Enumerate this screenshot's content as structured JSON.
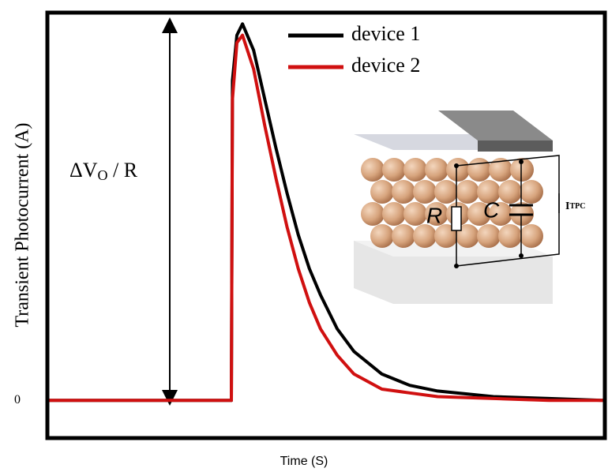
{
  "chart_data": {
    "type": "line",
    "y_label": "Transient Photocurrent (A)",
    "x_label": "Time (S)",
    "annotation": [
      "ΔV",
      "O",
      " / R"
    ],
    "inset_labels": {
      "r": "R",
      "c": "C",
      "current": [
        "I",
        "TPC"
      ]
    },
    "x": [
      0,
      3.3,
      3.32,
      3.4,
      3.5,
      3.7,
      3.9,
      4.1,
      4.3,
      4.5,
      4.7,
      4.9,
      5.2,
      5.5,
      6.0,
      6.5,
      7.0,
      8.0,
      9.0,
      10.0
    ],
    "series": [
      {
        "name": "device 1",
        "color": "#000000",
        "values": [
          0,
          0,
          0.85,
          0.97,
          1.0,
          0.93,
          0.8,
          0.67,
          0.55,
          0.44,
          0.35,
          0.28,
          0.19,
          0.13,
          0.07,
          0.04,
          0.025,
          0.01,
          0.005,
          0
        ]
      },
      {
        "name": "device 2",
        "color": "#d01010",
        "values": [
          0,
          0,
          0.8,
          0.95,
          0.97,
          0.88,
          0.73,
          0.59,
          0.46,
          0.35,
          0.26,
          0.19,
          0.12,
          0.07,
          0.03,
          0.02,
          0.01,
          0.005,
          0,
          0
        ]
      }
    ],
    "xlim": [
      0,
      10
    ],
    "ylim": [
      -0.1,
      1.03
    ],
    "yticks": [
      0
    ],
    "legend": "upper center"
  }
}
